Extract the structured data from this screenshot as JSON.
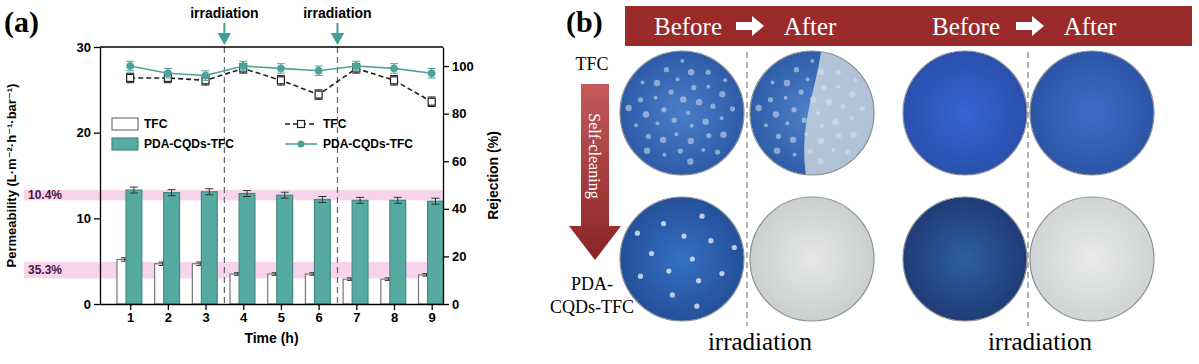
{
  "panel_labels": [
    "(a)",
    "(b)"
  ],
  "chart_data": {
    "type": "bar",
    "x_label": "Time (h)",
    "y_label": "Permeability (L·m⁻²·h⁻¹·bar⁻¹)",
    "y2_label": "Rejection (%)",
    "x": [
      1,
      2,
      3,
      4,
      5,
      6,
      7,
      8,
      9
    ],
    "xlim": [
      0.2,
      9.3
    ],
    "xticks": [
      1,
      2,
      3,
      4,
      5,
      6,
      7,
      8,
      9
    ],
    "ylim": [
      0,
      30
    ],
    "yticks": [
      0,
      10,
      20,
      30
    ],
    "y2lim": [
      0,
      108
    ],
    "y2ticks": [
      0,
      20,
      40,
      60,
      80,
      100
    ],
    "series": [
      {
        "name": "TFC",
        "type": "bar",
        "color": "#ffffff",
        "values": [
          5.2,
          4.7,
          4.7,
          3.5,
          3.5,
          3.5,
          2.9,
          2.9,
          3.4
        ],
        "errors": [
          0.2,
          0.2,
          0.2,
          0.15,
          0.15,
          0.15,
          0.15,
          0.15,
          0.15
        ]
      },
      {
        "name": "PDA-CQDs-TFC",
        "type": "bar",
        "color": "#55aaa2",
        "values": [
          13.3,
          13.0,
          13.1,
          12.9,
          12.7,
          12.2,
          12.1,
          12.1,
          12.0
        ],
        "errors": [
          0.35,
          0.35,
          0.35,
          0.35,
          0.35,
          0.35,
          0.35,
          0.35,
          0.35
        ]
      },
      {
        "name": "TFC",
        "type": "line",
        "axis": "y2",
        "color": "#222222",
        "marker": "square",
        "line_style": "dashed",
        "values": [
          95,
          95,
          94,
          99,
          94,
          88,
          99,
          94,
          85
        ],
        "errors": [
          2,
          2,
          2,
          2,
          2,
          2,
          2,
          2,
          2
        ]
      },
      {
        "name": "PDA-CQDs-TFC",
        "type": "line",
        "axis": "y2",
        "color": "#4da39c",
        "marker": "circle",
        "line_style": "solid",
        "values": [
          100,
          97,
          96,
          100,
          99,
          98,
          100,
          99,
          97
        ],
        "errors": [
          2,
          2,
          2,
          2,
          2,
          2,
          2,
          2,
          2
        ]
      }
    ],
    "bands": [
      {
        "label": "10.4%",
        "range": [
          12.1,
          13.3
        ]
      },
      {
        "label": "35.3%",
        "range": [
          3.0,
          4.9
        ]
      }
    ],
    "annotations": [
      {
        "text": "irradiation",
        "x": 3.5
      },
      {
        "text": "irradiation",
        "x": 6.5
      }
    ]
  },
  "panel_b": {
    "header": [
      "Before",
      "After",
      "Before",
      "After"
    ],
    "row_labels": [
      [
        "TFC"
      ],
      [
        "PDA-",
        "CQDs-TFC"
      ]
    ],
    "arrow_label": "Self-cleaning",
    "captions": [
      "irradiation",
      "irradiation"
    ]
  }
}
